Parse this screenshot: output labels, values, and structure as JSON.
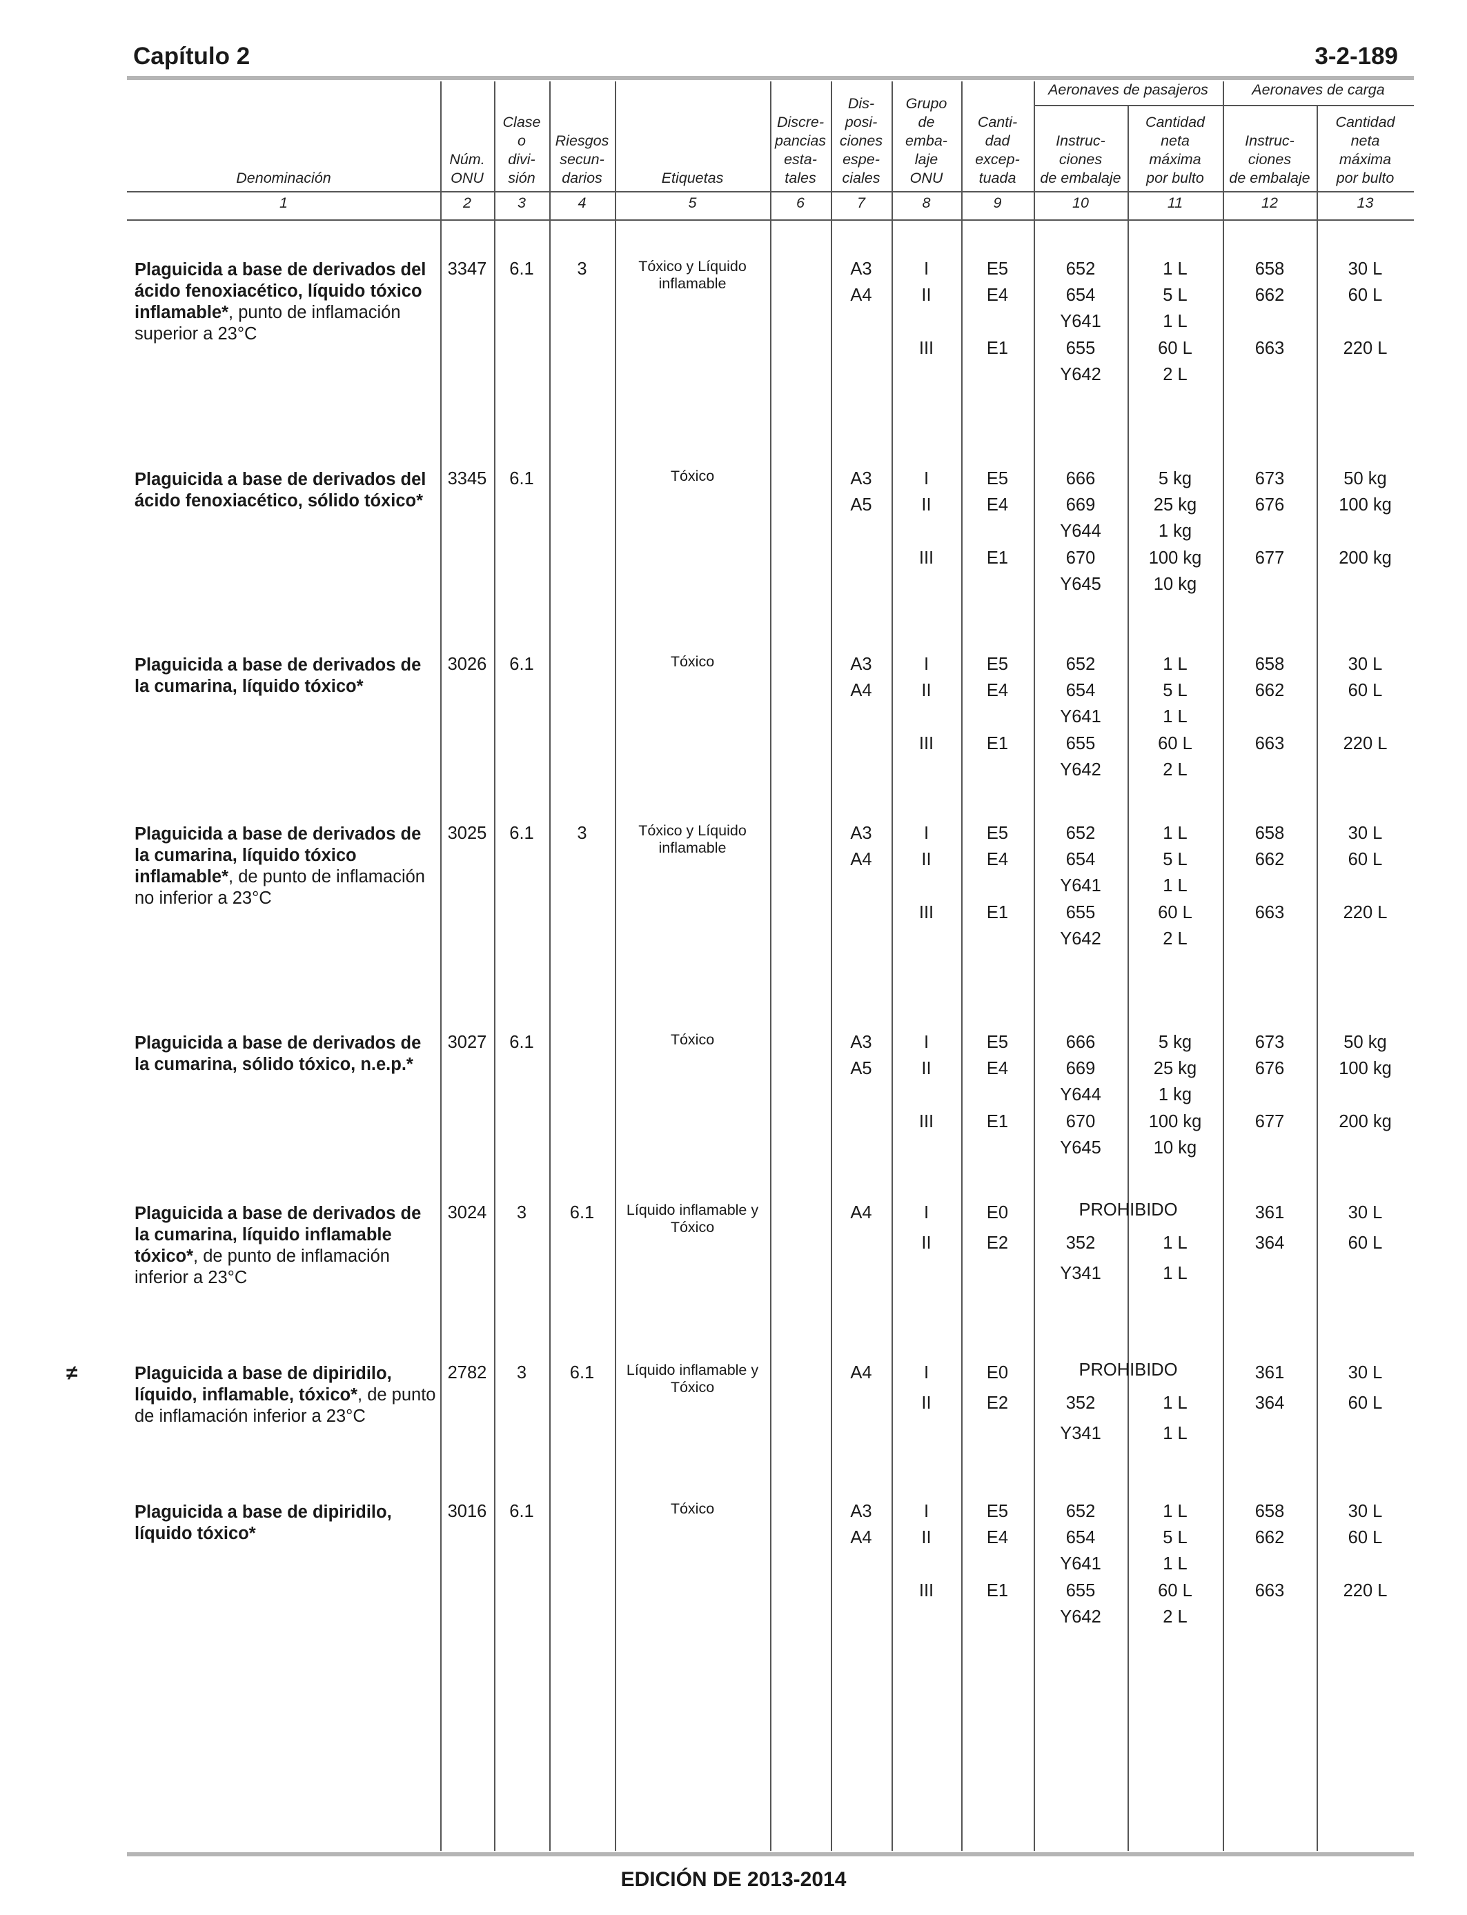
{
  "header": {
    "chapter": "Capítulo 2",
    "page": "3-2-189"
  },
  "footer": {
    "edition": "EDICIÓN DE 2013-2014"
  },
  "table": {
    "group_headers": {
      "passenger": "Aeronaves de pasajeros",
      "cargo": "Aeronaves de carga"
    },
    "column_headers": [
      [
        "Denominación"
      ],
      [
        "Núm.",
        "ONU"
      ],
      [
        "Clase",
        "o",
        "divi-",
        "sión"
      ],
      [
        "Riesgos",
        "secun-",
        "darios"
      ],
      [
        "Etiquetas"
      ],
      [
        "Discre-",
        "pancias",
        "esta-",
        "tales"
      ],
      [
        "Dis-",
        "posi-",
        "ciones",
        "espe-",
        "ciales"
      ],
      [
        "Grupo",
        "de",
        "emba-",
        "laje",
        "ONU"
      ],
      [
        "Canti-",
        "dad",
        "excep-",
        "tuada"
      ],
      [
        "Instruc-",
        "ciones",
        "de embalaje"
      ],
      [
        "Cantidad",
        "neta",
        "máxima",
        "por bulto"
      ],
      [
        "Instruc-",
        "ciones",
        "de embalaje"
      ],
      [
        "Cantidad",
        "neta",
        "máxima",
        "por bulto"
      ]
    ],
    "column_numbers": [
      "1",
      "2",
      "3",
      "4",
      "5",
      "6",
      "7",
      "8",
      "9",
      "10",
      "11",
      "12",
      "13"
    ],
    "entries": [
      {
        "name_bold": "Plaguicida a base de derivados del ácido fenoxiacético, líquido tóxico inflamable*",
        "name_rest": ", punto de inflamación superior a 23°C",
        "margin": "",
        "un": "3347",
        "cls": "6.1",
        "sub": "3",
        "label": "Tóxico y Líquido inflamable",
        "special": [
          "A3",
          "A4"
        ],
        "lines": [
          {
            "pg": "I",
            "eq": "E5",
            "pi": "652",
            "pq": "1 L",
            "ci": "658",
            "cq": "30 L"
          },
          {
            "pg": "II",
            "eq": "E4",
            "pi": "654",
            "pq": "5 L",
            "ci": "662",
            "cq": "60 L"
          },
          {
            "pg": "",
            "eq": "",
            "pi": "Y641",
            "pq": "1 L",
            "ci": "",
            "cq": ""
          },
          {
            "pg": "III",
            "eq": "E1",
            "pi": "655",
            "pq": "60 L",
            "ci": "663",
            "cq": "220 L"
          },
          {
            "pg": "",
            "eq": "",
            "pi": "Y642",
            "pq": "2 L",
            "ci": "",
            "cq": ""
          }
        ]
      },
      {
        "name_bold": "Plaguicida a base de derivados del ácido fenoxiacético, sólido tóxico*",
        "name_rest": "",
        "margin": "",
        "un": "3345",
        "cls": "6.1",
        "sub": "",
        "label": "Tóxico",
        "special": [
          "A3",
          "A5"
        ],
        "lines": [
          {
            "pg": "I",
            "eq": "E5",
            "pi": "666",
            "pq": "5 kg",
            "ci": "673",
            "cq": "50 kg"
          },
          {
            "pg": "II",
            "eq": "E4",
            "pi": "669",
            "pq": "25 kg",
            "ci": "676",
            "cq": "100 kg"
          },
          {
            "pg": "",
            "eq": "",
            "pi": "Y644",
            "pq": "1 kg",
            "ci": "",
            "cq": ""
          },
          {
            "pg": "III",
            "eq": "E1",
            "pi": "670",
            "pq": "100 kg",
            "ci": "677",
            "cq": "200 kg"
          },
          {
            "pg": "",
            "eq": "",
            "pi": "Y645",
            "pq": "10 kg",
            "ci": "",
            "cq": ""
          }
        ]
      },
      {
        "name_bold": "Plaguicida a base de derivados de la cumarina, líquido tóxico*",
        "name_rest": "",
        "margin": "",
        "un": "3026",
        "cls": "6.1",
        "sub": "",
        "label": "Tóxico",
        "special": [
          "A3",
          "A4"
        ],
        "lines": [
          {
            "pg": "I",
            "eq": "E5",
            "pi": "652",
            "pq": "1 L",
            "ci": "658",
            "cq": "30 L"
          },
          {
            "pg": "II",
            "eq": "E4",
            "pi": "654",
            "pq": "5 L",
            "ci": "662",
            "cq": "60 L"
          },
          {
            "pg": "",
            "eq": "",
            "pi": "Y641",
            "pq": "1 L",
            "ci": "",
            "cq": ""
          },
          {
            "pg": "III",
            "eq": "E1",
            "pi": "655",
            "pq": "60 L",
            "ci": "663",
            "cq": "220 L"
          },
          {
            "pg": "",
            "eq": "",
            "pi": "Y642",
            "pq": "2 L",
            "ci": "",
            "cq": ""
          }
        ]
      },
      {
        "name_bold": "Plaguicida a base de derivados de la cumarina, líquido tóxico inflamable*",
        "name_rest": ", de punto de inflamación no inferior a 23°C",
        "margin": "",
        "un": "3025",
        "cls": "6.1",
        "sub": "3",
        "label": "Tóxico y Líquido inflamable",
        "special": [
          "A3",
          "A4"
        ],
        "lines": [
          {
            "pg": "I",
            "eq": "E5",
            "pi": "652",
            "pq": "1 L",
            "ci": "658",
            "cq": "30 L"
          },
          {
            "pg": "II",
            "eq": "E4",
            "pi": "654",
            "pq": "5 L",
            "ci": "662",
            "cq": "60 L"
          },
          {
            "pg": "",
            "eq": "",
            "pi": "Y641",
            "pq": "1 L",
            "ci": "",
            "cq": ""
          },
          {
            "pg": "III",
            "eq": "E1",
            "pi": "655",
            "pq": "60 L",
            "ci": "663",
            "cq": "220 L"
          },
          {
            "pg": "",
            "eq": "",
            "pi": "Y642",
            "pq": "2 L",
            "ci": "",
            "cq": ""
          }
        ]
      },
      {
        "name_bold": "Plaguicida a base de derivados de la cumarina, sólido tóxico, n.e.p.*",
        "name_rest": "",
        "margin": "",
        "un": "3027",
        "cls": "6.1",
        "sub": "",
        "label": "Tóxico",
        "special": [
          "A3",
          "A5"
        ],
        "lines": [
          {
            "pg": "I",
            "eq": "E5",
            "pi": "666",
            "pq": "5 kg",
            "ci": "673",
            "cq": "50 kg"
          },
          {
            "pg": "II",
            "eq": "E4",
            "pi": "669",
            "pq": "25 kg",
            "ci": "676",
            "cq": "100 kg"
          },
          {
            "pg": "",
            "eq": "",
            "pi": "Y644",
            "pq": "1 kg",
            "ci": "",
            "cq": ""
          },
          {
            "pg": "III",
            "eq": "E1",
            "pi": "670",
            "pq": "100 kg",
            "ci": "677",
            "cq": "200 kg"
          },
          {
            "pg": "",
            "eq": "",
            "pi": "Y645",
            "pq": "10 kg",
            "ci": "",
            "cq": ""
          }
        ]
      },
      {
        "name_bold": "Plaguicida a base de derivados de la cumarina, líquido inflamable tóxico*",
        "name_rest": ", de punto de inflamación inferior a 23°C",
        "margin": "",
        "un": "3024",
        "cls": "3",
        "sub": "6.1",
        "label": "Líquido inflamable y Tóxico",
        "special": [
          "A4"
        ],
        "forbidden": "PROHIBIDO",
        "lines": [
          {
            "pg": "I",
            "eq": "E0",
            "pi": "",
            "pq": "",
            "ci": "361",
            "cq": "30 L"
          },
          {
            "pg": "II",
            "eq": "E2",
            "pi": "352",
            "pq": "1 L",
            "ci": "364",
            "cq": "60 L"
          },
          {
            "pg": "",
            "eq": "",
            "pi": "Y341",
            "pq": "1 L",
            "ci": "",
            "cq": ""
          }
        ]
      },
      {
        "name_bold": "Plaguicida a base de dipiridilo, líquido, inflamable, tóxico*",
        "name_rest": ", de punto de inflamación inferior a 23°C",
        "margin": "≠",
        "un": "2782",
        "cls": "3",
        "sub": "6.1",
        "label": "Líquido inflamable y Tóxico",
        "special": [
          "A4"
        ],
        "forbidden": "PROHIBIDO",
        "lines": [
          {
            "pg": "I",
            "eq": "E0",
            "pi": "",
            "pq": "",
            "ci": "361",
            "cq": "30 L"
          },
          {
            "pg": "II",
            "eq": "E2",
            "pi": "352",
            "pq": "1 L",
            "ci": "364",
            "cq": "60 L"
          },
          {
            "pg": "",
            "eq": "",
            "pi": "Y341",
            "pq": "1 L",
            "ci": "",
            "cq": ""
          }
        ]
      },
      {
        "name_bold": "Plaguicida a base de dipiridilo, líquido tóxico*",
        "name_rest": "",
        "margin": "",
        "un": "3016",
        "cls": "6.1",
        "sub": "",
        "label": "Tóxico",
        "special": [
          "A3",
          "A4"
        ],
        "lines": [
          {
            "pg": "I",
            "eq": "E5",
            "pi": "652",
            "pq": "1 L",
            "ci": "658",
            "cq": "30 L"
          },
          {
            "pg": "II",
            "eq": "E4",
            "pi": "654",
            "pq": "5 L",
            "ci": "662",
            "cq": "60 L"
          },
          {
            "pg": "",
            "eq": "",
            "pi": "Y641",
            "pq": "1 L",
            "ci": "",
            "cq": ""
          },
          {
            "pg": "III",
            "eq": "E1",
            "pi": "655",
            "pq": "60 L",
            "ci": "663",
            "cq": "220 L"
          },
          {
            "pg": "",
            "eq": "",
            "pi": "Y642",
            "pq": "2 L",
            "ci": "",
            "cq": ""
          }
        ]
      }
    ]
  }
}
